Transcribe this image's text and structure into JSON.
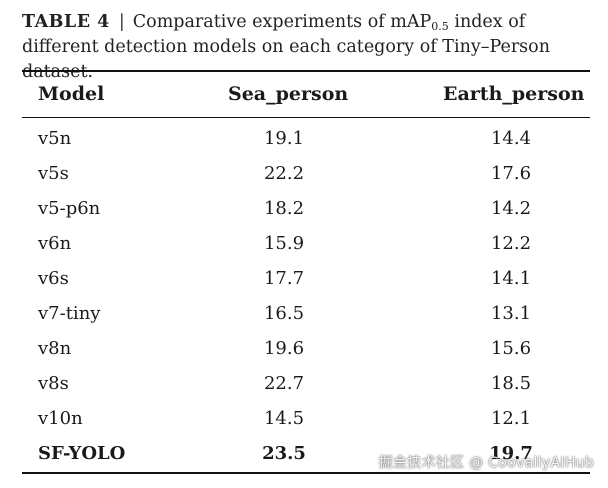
{
  "caption": {
    "label": "TABLE 4",
    "separator": "|",
    "text_before_sub": "Comparative experiments of mAP",
    "subscript": "0.5",
    "text_after_sub": " index of different detection models on each category of Tiny–Person dataset."
  },
  "table": {
    "headers": [
      "Model",
      "Sea_person",
      "Earth_person"
    ],
    "rows": [
      {
        "model": "v5n",
        "sea": "19.1",
        "earth": "14.4",
        "bold": false
      },
      {
        "model": "v5s",
        "sea": "22.2",
        "earth": "17.6",
        "bold": false
      },
      {
        "model": "v5-p6n",
        "sea": "18.2",
        "earth": "14.2",
        "bold": false
      },
      {
        "model": "v6n",
        "sea": "15.9",
        "earth": "12.2",
        "bold": false
      },
      {
        "model": "v6s",
        "sea": "17.7",
        "earth": "14.1",
        "bold": false
      },
      {
        "model": "v7-tiny",
        "sea": "16.5",
        "earth": "13.1",
        "bold": false
      },
      {
        "model": "v8n",
        "sea": "19.6",
        "earth": "15.6",
        "bold": false
      },
      {
        "model": "v8s",
        "sea": "22.7",
        "earth": "18.5",
        "bold": false
      },
      {
        "model": "v10n",
        "sea": "14.5",
        "earth": "12.1",
        "bold": false
      },
      {
        "model": "SF-YOLO",
        "sea": "23.5",
        "earth": "19.7",
        "bold": true
      }
    ]
  },
  "watermark": "掘金技术社区 @ CoovallyAIHub"
}
